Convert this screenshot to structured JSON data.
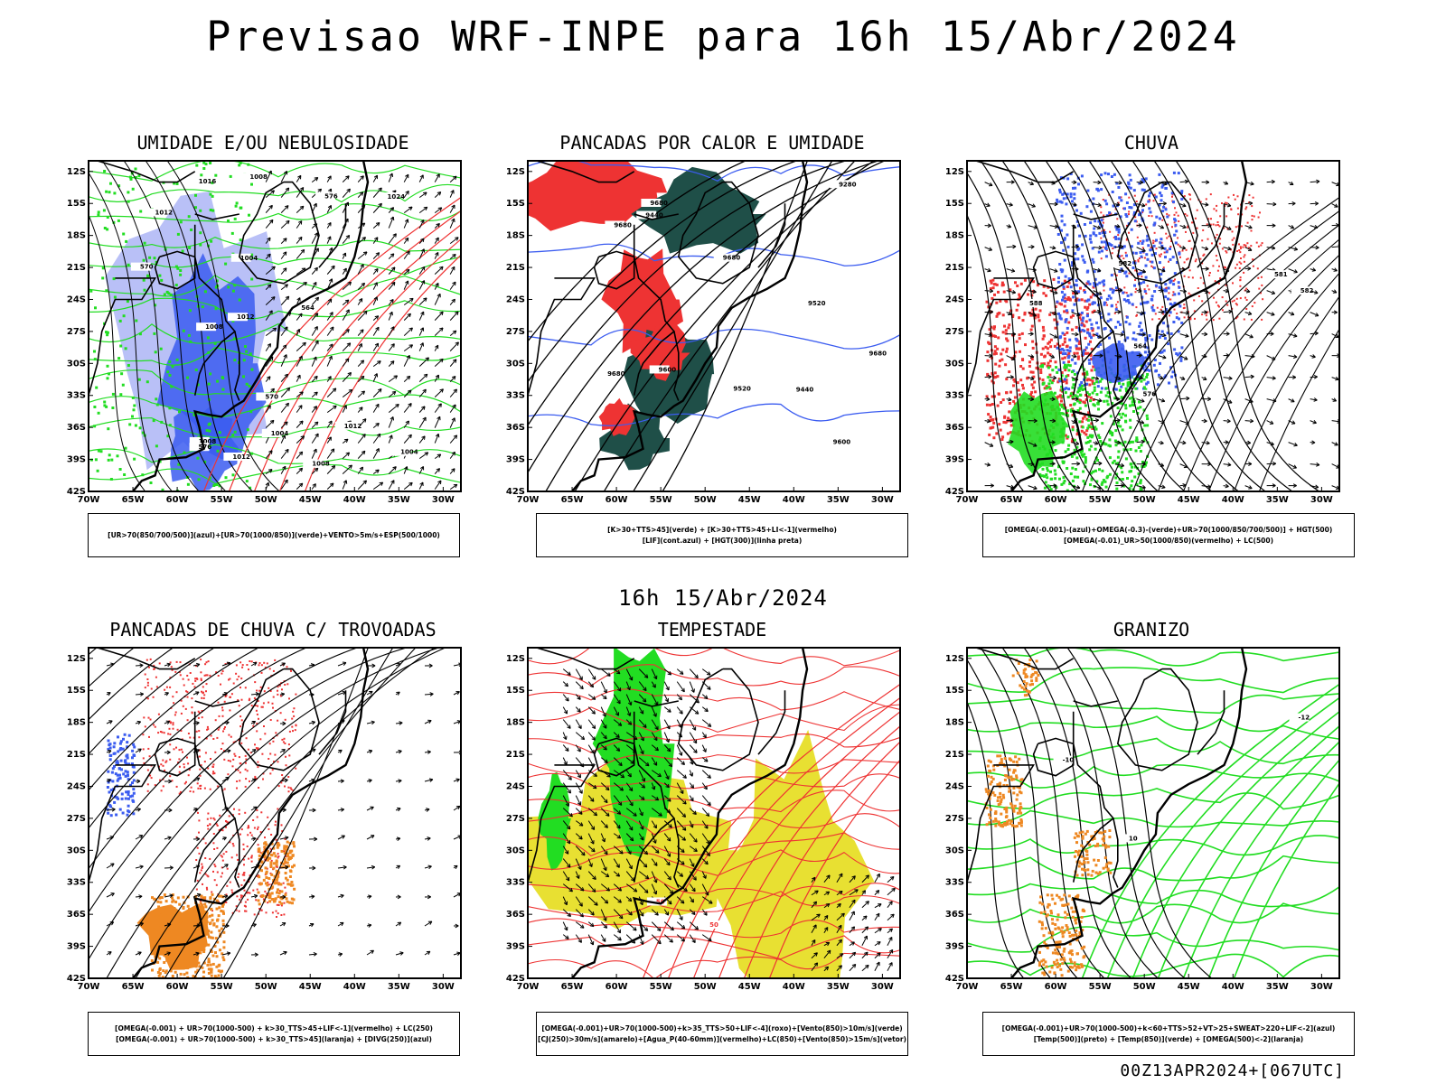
{
  "title": "Previsao WRF-INPE  para 16h 15/Abr/2024",
  "subtitle": "16h 15/Abr/2024",
  "footer": "00Z13APR2024+[067UTC]",
  "axes": {
    "lat_labels": [
      "12S",
      "15S",
      "18S",
      "21S",
      "24S",
      "27S",
      "30S",
      "33S",
      "36S",
      "39S",
      "42S"
    ],
    "lon_labels": [
      "70W",
      "65W",
      "60W",
      "55W",
      "50W",
      "45W",
      "40W",
      "35W",
      "30W"
    ]
  },
  "panels": [
    {
      "title": "UMIDADE E/OU NEBULOSIDADE",
      "legend": [
        "[UR>70(850/700/500)](azul)+[UR>70(1000/850)](verde)+VENTO>5m/s+ESP(500/1000)"
      ],
      "contour_labels": [
        "1012",
        "1008",
        "1008",
        "1012",
        "1016",
        "1012",
        "1008",
        "1004",
        "1008",
        "1004",
        "1024",
        "1004",
        "1012",
        "570",
        "576",
        "564",
        "570",
        "576"
      ]
    },
    {
      "title": "PANCADAS POR CALOR E UMIDADE",
      "legend": [
        "[K>30+TTS>45](verde) + [K>30+TTS>45+LI<-1](vermelho)",
        "[LIF](cont.azul) + [HGT(300)](linha preta)"
      ],
      "contour_labels": [
        "9680",
        "9680",
        "9680",
        "9680",
        "9600",
        "9520",
        "9440",
        "9280",
        "9440",
        "9600",
        "9520",
        "9680"
      ]
    },
    {
      "title": "CHUVA",
      "legend": [
        "[OMEGA(-0.001)-(azul)+OMEGA(-0.3)-(verde)+UR>70(1000/850/700/500)] + HGT(500)",
        "[OMEGA(-0.01)_UR>50(1000/850)(vermelho) + LC(500)"
      ],
      "contour_labels": [
        "582",
        "564",
        "588",
        "581",
        "582",
        "576"
      ]
    },
    {
      "title": "PANCADAS DE CHUVA C/ TROVOADAS",
      "legend": [
        "[OMEGA(-0.001) + UR>70(1000-500) + k>30_TTS>45+LIF<-1](vermelho) + LC(250)",
        "[OMEGA(-0.001) + UR>70(1000-500) + k>30_TTS>45](laranja) + [DIVG(250)](azul)"
      ],
      "contour_labels": []
    },
    {
      "title": "TEMPESTADE",
      "legend": [
        "[OMEGA(-0.001)+UR>70(1000-500)+k>35_TTS>50+LIF<-4](roxo)+[Vento(850)>10m/s](verde)",
        "[CJ(250)>30m/s](amarelo)+[Agua_P(40-60mm)](vermelho)+LC(850)+[Vento(850)>15m/s](vetor)"
      ],
      "contour_labels": [
        "50",
        "50"
      ]
    },
    {
      "title": "GRANIZO",
      "legend": [
        "[OMEGA(-0.001)+UR>70(1000-500)+k<60+TTS>52+VT>25+SWEAT>220+LIF<-2](azul)",
        "[Temp(500)](preto) + [Temp(850)](verde) + [OMEGA(500)<-2](laranja)"
      ],
      "contour_labels": [
        "-12",
        "-10",
        "10"
      ]
    }
  ],
  "colors": {
    "blue": "#3b5cf0",
    "lightblue": "#a8b0f5",
    "green": "#22dd22",
    "red": "#ee3333",
    "darkgreen": "#1f4f48",
    "yellow": "#e8e032",
    "orange": "#ee8822",
    "purple": "#a040c0"
  }
}
